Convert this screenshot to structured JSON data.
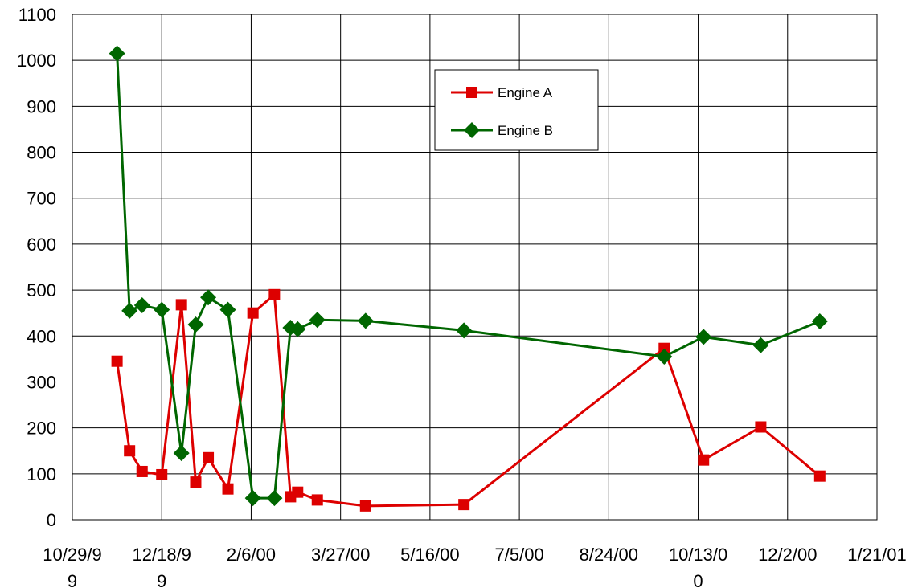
{
  "chart_data": {
    "type": "line",
    "x_type": "date",
    "xlim": [
      "1999-10-29",
      "2001-01-21"
    ],
    "ylim": [
      0,
      1100
    ],
    "grid": true,
    "legend_position": "top-center",
    "x_ticks": [
      {
        "date": "1999-10-29",
        "lines": [
          "10/29/9",
          "9"
        ]
      },
      {
        "date": "1999-12-18",
        "lines": [
          "12/18/9",
          "9"
        ]
      },
      {
        "date": "2000-02-06",
        "lines": [
          "2/6/00"
        ]
      },
      {
        "date": "2000-03-27",
        "lines": [
          "3/27/00"
        ]
      },
      {
        "date": "2000-05-16",
        "lines": [
          "5/16/00"
        ]
      },
      {
        "date": "2000-07-05",
        "lines": [
          "7/5/00"
        ]
      },
      {
        "date": "2000-08-24",
        "lines": [
          "8/24/00"
        ]
      },
      {
        "date": "2000-10-13",
        "lines": [
          "10/13/0",
          "0"
        ]
      },
      {
        "date": "2000-12-02",
        "lines": [
          "12/2/00"
        ]
      },
      {
        "date": "2001-01-21",
        "lines": [
          "1/21/01"
        ]
      }
    ],
    "y_ticks": [
      0,
      100,
      200,
      300,
      400,
      500,
      600,
      700,
      800,
      900,
      1000,
      1100
    ],
    "series": [
      {
        "name": "Engine A",
        "color": "#dd0000",
        "marker": "square",
        "points": [
          {
            "x": "1999-11-23",
            "y": 345
          },
          {
            "x": "1999-11-30",
            "y": 150
          },
          {
            "x": "1999-12-07",
            "y": 105
          },
          {
            "x": "1999-12-18",
            "y": 98
          },
          {
            "x": "1999-12-29",
            "y": 468
          },
          {
            "x": "2000-01-06",
            "y": 82
          },
          {
            "x": "2000-01-13",
            "y": 135
          },
          {
            "x": "2000-01-24",
            "y": 67
          },
          {
            "x": "2000-02-07",
            "y": 450
          },
          {
            "x": "2000-02-19",
            "y": 490
          },
          {
            "x": "2000-02-28",
            "y": 50
          },
          {
            "x": "2000-03-03",
            "y": 60
          },
          {
            "x": "2000-03-14",
            "y": 43
          },
          {
            "x": "2000-04-10",
            "y": 30
          },
          {
            "x": "2000-06-04",
            "y": 33
          },
          {
            "x": "2000-09-24",
            "y": 373
          },
          {
            "x": "2000-10-16",
            "y": 130
          },
          {
            "x": "2000-11-17",
            "y": 202
          },
          {
            "x": "2000-12-20",
            "y": 95
          }
        ]
      },
      {
        "name": "Engine B",
        "color": "#006600",
        "marker": "diamond",
        "points": [
          {
            "x": "1999-11-23",
            "y": 1015
          },
          {
            "x": "1999-11-30",
            "y": 455
          },
          {
            "x": "1999-12-07",
            "y": 467
          },
          {
            "x": "1999-12-18",
            "y": 457
          },
          {
            "x": "1999-12-29",
            "y": 145
          },
          {
            "x": "2000-01-06",
            "y": 425
          },
          {
            "x": "2000-01-13",
            "y": 484
          },
          {
            "x": "2000-01-24",
            "y": 457
          },
          {
            "x": "2000-02-07",
            "y": 47
          },
          {
            "x": "2000-02-19",
            "y": 47
          },
          {
            "x": "2000-02-28",
            "y": 418
          },
          {
            "x": "2000-03-03",
            "y": 415
          },
          {
            "x": "2000-03-14",
            "y": 435
          },
          {
            "x": "2000-04-10",
            "y": 433
          },
          {
            "x": "2000-06-04",
            "y": 412
          },
          {
            "x": "2000-09-24",
            "y": 355
          },
          {
            "x": "2000-10-16",
            "y": 398
          },
          {
            "x": "2000-11-17",
            "y": 380
          },
          {
            "x": "2000-12-20",
            "y": 432
          }
        ]
      }
    ]
  }
}
